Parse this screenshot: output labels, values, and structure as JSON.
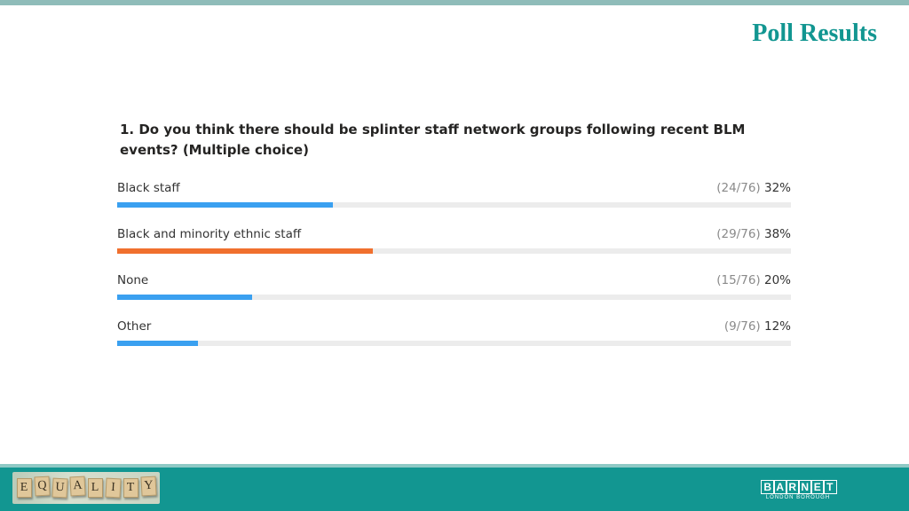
{
  "slide": {
    "title": "Poll Results"
  },
  "chart_data": {
    "type": "bar",
    "title": "1. Do you think there should be splinter staff network groups following recent BLM events? (Multiple choice)",
    "categories": [
      "Black staff",
      "Black and minority ethnic staff",
      "None",
      "Other"
    ],
    "counts": [
      "(24/76)",
      "(29/76)",
      "(15/76)",
      "(9/76)"
    ],
    "percent_labels": [
      "32%",
      "38%",
      "20%",
      "12%"
    ],
    "values": [
      32,
      38,
      20,
      12
    ],
    "colors": [
      "#3aa0f0",
      "#f0702e",
      "#3aa0f0",
      "#3aa0f0"
    ],
    "xlim": [
      0,
      100
    ]
  },
  "footer": {
    "equality_letters": [
      "E",
      "Q",
      "U",
      "A",
      "L",
      "I",
      "T",
      "Y"
    ],
    "logo_letters": [
      "B",
      "A",
      "R",
      "N",
      "E",
      "T"
    ],
    "logo_subtitle": "LONDON BOROUGH"
  }
}
